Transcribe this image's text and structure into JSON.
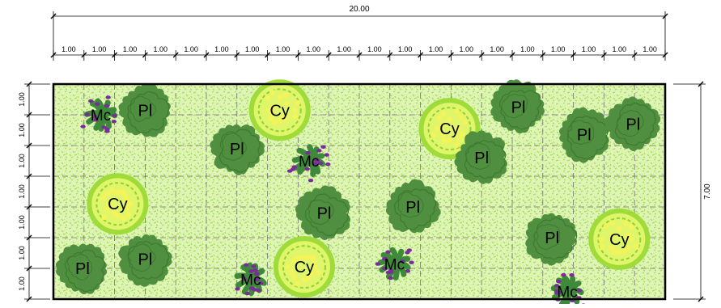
{
  "drawing": {
    "total_width_label": "20.00",
    "total_height_label": "7.00",
    "grid_cols": 20,
    "grid_rows": 7,
    "column_labels": [
      "1.00",
      "1.00",
      "1.00",
      "1.00",
      "1.00",
      "1.00",
      "1.00",
      "1.00",
      "1.00",
      "1.00",
      "1.00",
      "1.00",
      "1.00",
      "1.00",
      "1.00",
      "1.00",
      "1.00",
      "1.00",
      "1.00",
      "1.00"
    ],
    "row_labels": [
      "1.00",
      "1.00",
      "1.00",
      "1.00",
      "1.00",
      "1.00",
      "1.00"
    ]
  },
  "colors": {
    "lawn_light": "#dff5b8",
    "lawn_speckle": "#a8dc5a",
    "pl_shrub": "#4f8f3f",
    "pl_shrub_dark": "#3e7a30",
    "cy_ring": "#9fdc3a",
    "cy_fill": "#dff56a",
    "mc_leaf": "#3f8a3a",
    "mc_flower": "#7a2c9a",
    "border": "#000000",
    "dim": "#000000"
  },
  "plants": [
    {
      "code": "Pl",
      "gx": 3.0,
      "gy": 0.85
    },
    {
      "code": "Mc",
      "gx": 1.55,
      "gy": 1.0
    },
    {
      "code": "Cy",
      "gx": 7.4,
      "gy": 0.85
    },
    {
      "code": "Pl",
      "gx": 6.0,
      "gy": 2.1
    },
    {
      "code": "Mc",
      "gx": 8.35,
      "gy": 2.5
    },
    {
      "code": "Cy",
      "gx": 12.95,
      "gy": 1.45
    },
    {
      "code": "Pl",
      "gx": 15.2,
      "gy": 0.75
    },
    {
      "code": "Pl",
      "gx": 17.35,
      "gy": 1.65
    },
    {
      "code": "Pl",
      "gx": 18.95,
      "gy": 1.3
    },
    {
      "code": "Pl",
      "gx": 14.0,
      "gy": 2.4
    },
    {
      "code": "Cy",
      "gx": 2.1,
      "gy": 3.9
    },
    {
      "code": "Pl",
      "gx": 8.85,
      "gy": 4.2
    },
    {
      "code": "Pl",
      "gx": 11.75,
      "gy": 4.0
    },
    {
      "code": "Pl",
      "gx": 16.3,
      "gy": 5.0
    },
    {
      "code": "Cy",
      "gx": 18.5,
      "gy": 5.05
    },
    {
      "code": "Pl",
      "gx": 0.95,
      "gy": 6.0
    },
    {
      "code": "Pl",
      "gx": 3.0,
      "gy": 5.7
    },
    {
      "code": "Mc",
      "gx": 6.45,
      "gy": 6.35
    },
    {
      "code": "Cy",
      "gx": 8.2,
      "gy": 5.95
    },
    {
      "code": "Mc",
      "gx": 11.15,
      "gy": 5.85
    },
    {
      "code": "Mc",
      "gx": 16.8,
      "gy": 6.75
    }
  ]
}
